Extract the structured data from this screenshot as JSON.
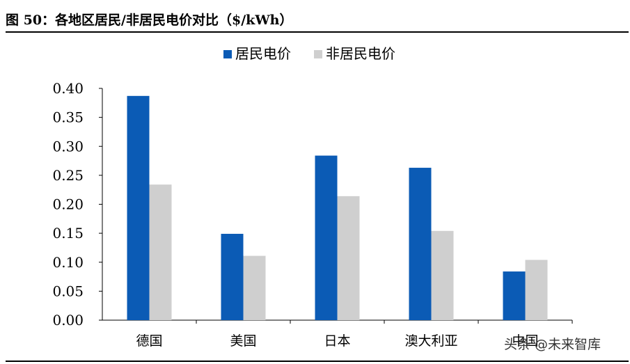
{
  "header": {
    "title": "图 50：各地区居民/非居民电价对比（$/kWh）"
  },
  "watermark": "头条 @未来智库",
  "chart_data": {
    "type": "bar",
    "categories": [
      "德国",
      "美国",
      "日本",
      "澳大利亚",
      "中国"
    ],
    "series": [
      {
        "name": "居民电价",
        "values": [
          0.387,
          0.149,
          0.284,
          0.263,
          0.084
        ]
      },
      {
        "name": "非居民电价",
        "values": [
          0.234,
          0.111,
          0.214,
          0.154,
          0.104
        ]
      }
    ],
    "ylim": [
      0,
      0.4
    ],
    "yticks": [
      "0.00",
      "0.05",
      "0.10",
      "0.15",
      "0.20",
      "0.25",
      "0.30",
      "0.35",
      "0.40"
    ],
    "legend_position": "top-center",
    "grid": false,
    "colors": {
      "居民电价": "#0B5BB5",
      "非居民电价": "#CFCFCF"
    }
  }
}
